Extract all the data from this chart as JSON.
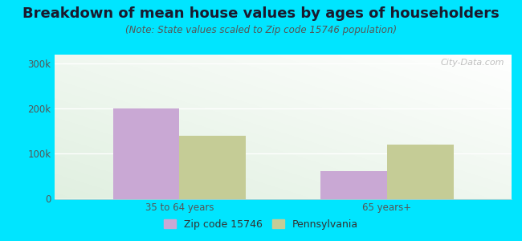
{
  "title": "Breakdown of mean house values by ages of householders",
  "subtitle": "(Note: State values scaled to Zip code 15746 population)",
  "categories": [
    "35 to 64 years",
    "65 years+"
  ],
  "zip_values": [
    200000,
    62000
  ],
  "state_values": [
    140000,
    120000
  ],
  "zip_color": "#c9a8d4",
  "state_color": "#c5cc96",
  "background_color": "#00e5ff",
  "yticks": [
    0,
    100000,
    200000,
    300000
  ],
  "ytick_labels": [
    "0",
    "100k",
    "200k",
    "300k"
  ],
  "ylim": [
    0,
    320000
  ],
  "legend_labels": [
    "Zip code 15746",
    "Pennsylvania"
  ],
  "title_fontsize": 13,
  "subtitle_fontsize": 8.5,
  "tick_fontsize": 8.5,
  "legend_fontsize": 9,
  "bar_width": 0.32,
  "watermark": "City-Data.com"
}
